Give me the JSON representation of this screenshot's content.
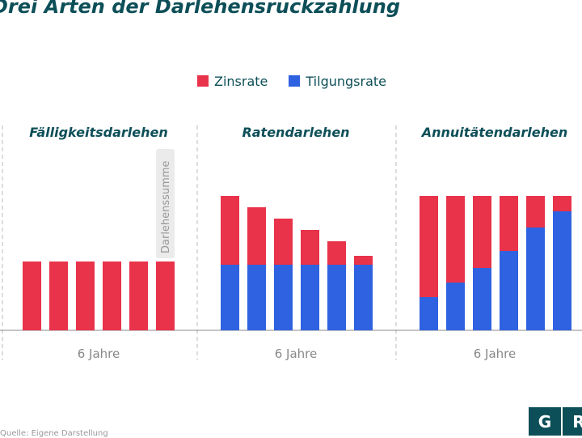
{
  "title": "Drei Arten der Darlehensrückzahlung",
  "footer": "Quelle: Eigene Darstellung",
  "logo": [
    "G",
    "R"
  ],
  "chart_data": {
    "type": "bar",
    "stacked": true,
    "legend": [
      {
        "name": "Zinsrate",
        "color": "#e8334a"
      },
      {
        "name": "Tilgungsrate",
        "color": "#2f62e0"
      }
    ],
    "legend_placement": "top",
    "ylim": [
      0,
      166
    ],
    "panels": [
      {
        "title": "Fälligkeitsdarlehen",
        "xlabel": "6 Jahre",
        "annotation": "Darlehenssumme",
        "series": [
          {
            "name": "Zinsrate",
            "values": [
              85,
              85,
              85,
              85,
              85,
              85
            ]
          },
          {
            "name": "Tilgungsrate",
            "values": [
              0,
              0,
              0,
              0,
              0,
              0
            ]
          }
        ]
      },
      {
        "title": "Ratendarlehen",
        "xlabel": "6 Jahre",
        "series": [
          {
            "name": "Zinsrate",
            "values": [
              85,
              71,
              57,
              43,
              29,
              11
            ]
          },
          {
            "name": "Tilgungsrate",
            "values": [
              81,
              81,
              81,
              81,
              81,
              81
            ]
          }
        ]
      },
      {
        "title": "Annuitätendarlehen",
        "xlabel": "6 Jahre",
        "series": [
          {
            "name": "Zinsrate",
            "values": [
              125,
              107,
              89,
              68,
              39,
              19
            ]
          },
          {
            "name": "Tilgungsrate",
            "values": [
              41,
              59,
              77,
              98,
              127,
              147
            ]
          }
        ]
      }
    ]
  }
}
